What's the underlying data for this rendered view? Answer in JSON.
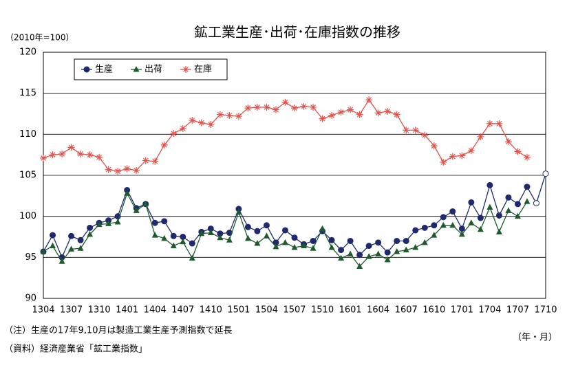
{
  "chart_data": {
    "type": "line",
    "title": "鉱工業生産･出荷･在庫指数の推移",
    "unit_label": "（2010年=100）",
    "xlabel": "（年・月）",
    "notes": [
      "（注）生産の17年9,10月は製造工業生産予測指数で延長",
      "（資料）経済産業省「鉱工業指数」"
    ],
    "categories": [
      "1304",
      null,
      null,
      "1307",
      null,
      null,
      "1310",
      null,
      null,
      "1401",
      null,
      null,
      "1404",
      null,
      null,
      "1407",
      null,
      null,
      "1410",
      null,
      null,
      "1501",
      null,
      null,
      "1504",
      null,
      null,
      "1507",
      null,
      null,
      "1510",
      null,
      null,
      "1601",
      null,
      null,
      "1604",
      null,
      null,
      "1607",
      null,
      null,
      "1610",
      null,
      null,
      "1701",
      null,
      null,
      "1704",
      null,
      null,
      "1707",
      null,
      null,
      "1710"
    ],
    "ylim": [
      90,
      120
    ],
    "yticks": [
      90,
      95,
      100,
      105,
      110,
      115,
      120
    ],
    "grid": true,
    "series": [
      {
        "name": "生産",
        "color": "#1f2a6e",
        "marker": "circle",
        "hollow_points": [
          53,
          54
        ],
        "values": [
          95.7,
          97.7,
          95.0,
          97.6,
          97.1,
          98.6,
          99.2,
          99.5,
          100.0,
          103.2,
          101.0,
          101.5,
          99.2,
          99.4,
          97.6,
          97.5,
          96.7,
          98.1,
          98.5,
          97.9,
          98.0,
          100.9,
          98.7,
          98.2,
          98.9,
          96.8,
          98.3,
          97.4,
          96.6,
          97.0,
          98.2,
          97.1,
          95.9,
          97.0,
          95.3,
          96.4,
          96.8,
          95.6,
          97.0,
          97.0,
          98.3,
          98.6,
          98.9,
          99.9,
          100.6,
          98.5,
          101.7,
          99.8,
          103.8,
          100.1,
          102.3,
          101.5,
          103.6,
          101.6,
          105.2
        ]
      },
      {
        "name": "出荷",
        "color": "#1e5a2e",
        "marker": "triangle",
        "values": [
          95.7,
          96.4,
          94.5,
          96.0,
          96.1,
          97.8,
          99.0,
          99.1,
          99.3,
          102.8,
          100.7,
          101.5,
          97.7,
          97.3,
          96.4,
          96.9,
          94.9,
          97.9,
          98.0,
          97.4,
          97.1,
          100.5,
          97.3,
          96.7,
          97.6,
          96.3,
          96.8,
          96.2,
          96.4,
          96.1,
          98.5,
          96.2,
          94.9,
          95.4,
          93.9,
          95.1,
          95.4,
          94.7,
          95.7,
          95.9,
          96.2,
          96.8,
          97.7,
          98.9,
          98.9,
          97.8,
          99.2,
          98.4,
          101.1,
          98.1,
          100.7,
          100.0,
          101.8,
          null,
          null
        ]
      },
      {
        "name": "在庫",
        "color": "#e0524a",
        "marker": "asterisk",
        "values": [
          107.1,
          107.5,
          107.6,
          108.4,
          107.6,
          107.5,
          107.2,
          105.7,
          105.5,
          105.8,
          105.6,
          106.8,
          106.7,
          108.7,
          110.1,
          110.7,
          111.7,
          111.4,
          111.2,
          112.4,
          112.3,
          112.2,
          113.2,
          113.3,
          113.3,
          113.0,
          113.9,
          113.2,
          113.4,
          113.3,
          111.9,
          112.3,
          112.7,
          113.0,
          112.4,
          114.2,
          112.6,
          112.8,
          112.4,
          110.5,
          110.5,
          109.9,
          108.6,
          106.6,
          107.3,
          107.4,
          108.0,
          109.7,
          111.3,
          111.3,
          109.1,
          107.9,
          107.2,
          null,
          null
        ]
      }
    ]
  }
}
